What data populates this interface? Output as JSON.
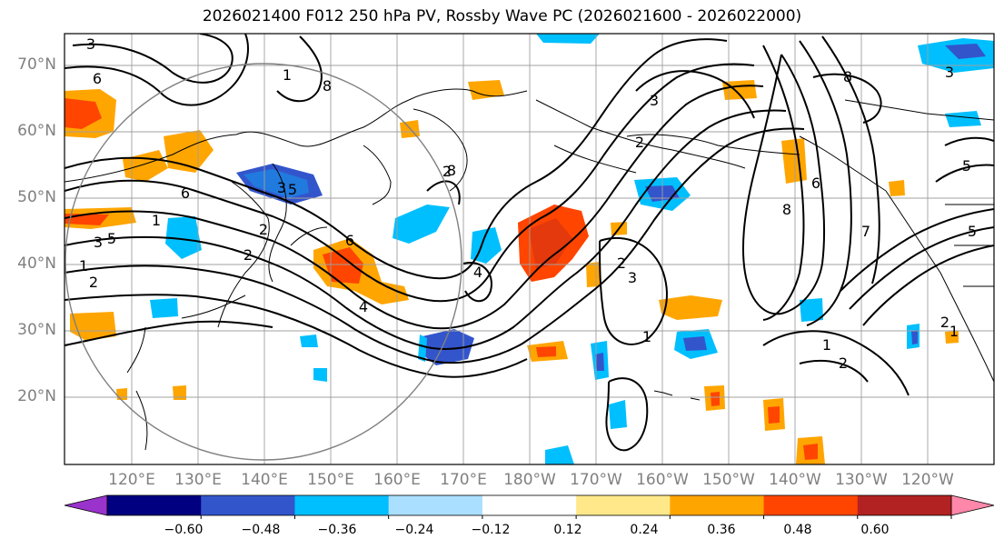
{
  "title": "2026021400 F012 250 hPa PV, Rossby Wave PC (2026021600 - 2026022000)",
  "lat_labels": [
    "70°N",
    "60°N",
    "50°N",
    "40°N",
    "30°N",
    "20°N"
  ],
  "lon_labels": [
    "120°E",
    "130°E",
    "140°E",
    "150°E",
    "160°E",
    "170°E",
    "180°W",
    "170°W",
    "160°W",
    "150°W",
    "140°W",
    "130°W",
    "120°W"
  ],
  "colorbar": {
    "ticks": [
      "−0.60",
      "−0.48",
      "−0.36",
      "−0.24",
      "−0.12",
      "0.12",
      "0.24",
      "0.36",
      "0.48",
      "0.60"
    ],
    "colors": [
      "#9933cc",
      "#000080",
      "#3355cc",
      "#00bfff",
      "#aadfff",
      "#ffffff",
      "#ffe88a",
      "#ffa500",
      "#ff4500",
      "#b22222",
      "#ff88aa"
    ]
  },
  "contour_labels": [
    "3",
    "6",
    "5",
    "1",
    "8",
    "3",
    "6",
    "2",
    "2",
    "1",
    "2",
    "5",
    "3",
    "1",
    "6",
    "2",
    "4",
    "8",
    "4",
    "3",
    "2",
    "3",
    "1",
    "2",
    "8",
    "6",
    "7",
    "1",
    "2",
    "5",
    "8",
    "5",
    "3",
    "2",
    "1"
  ]
}
